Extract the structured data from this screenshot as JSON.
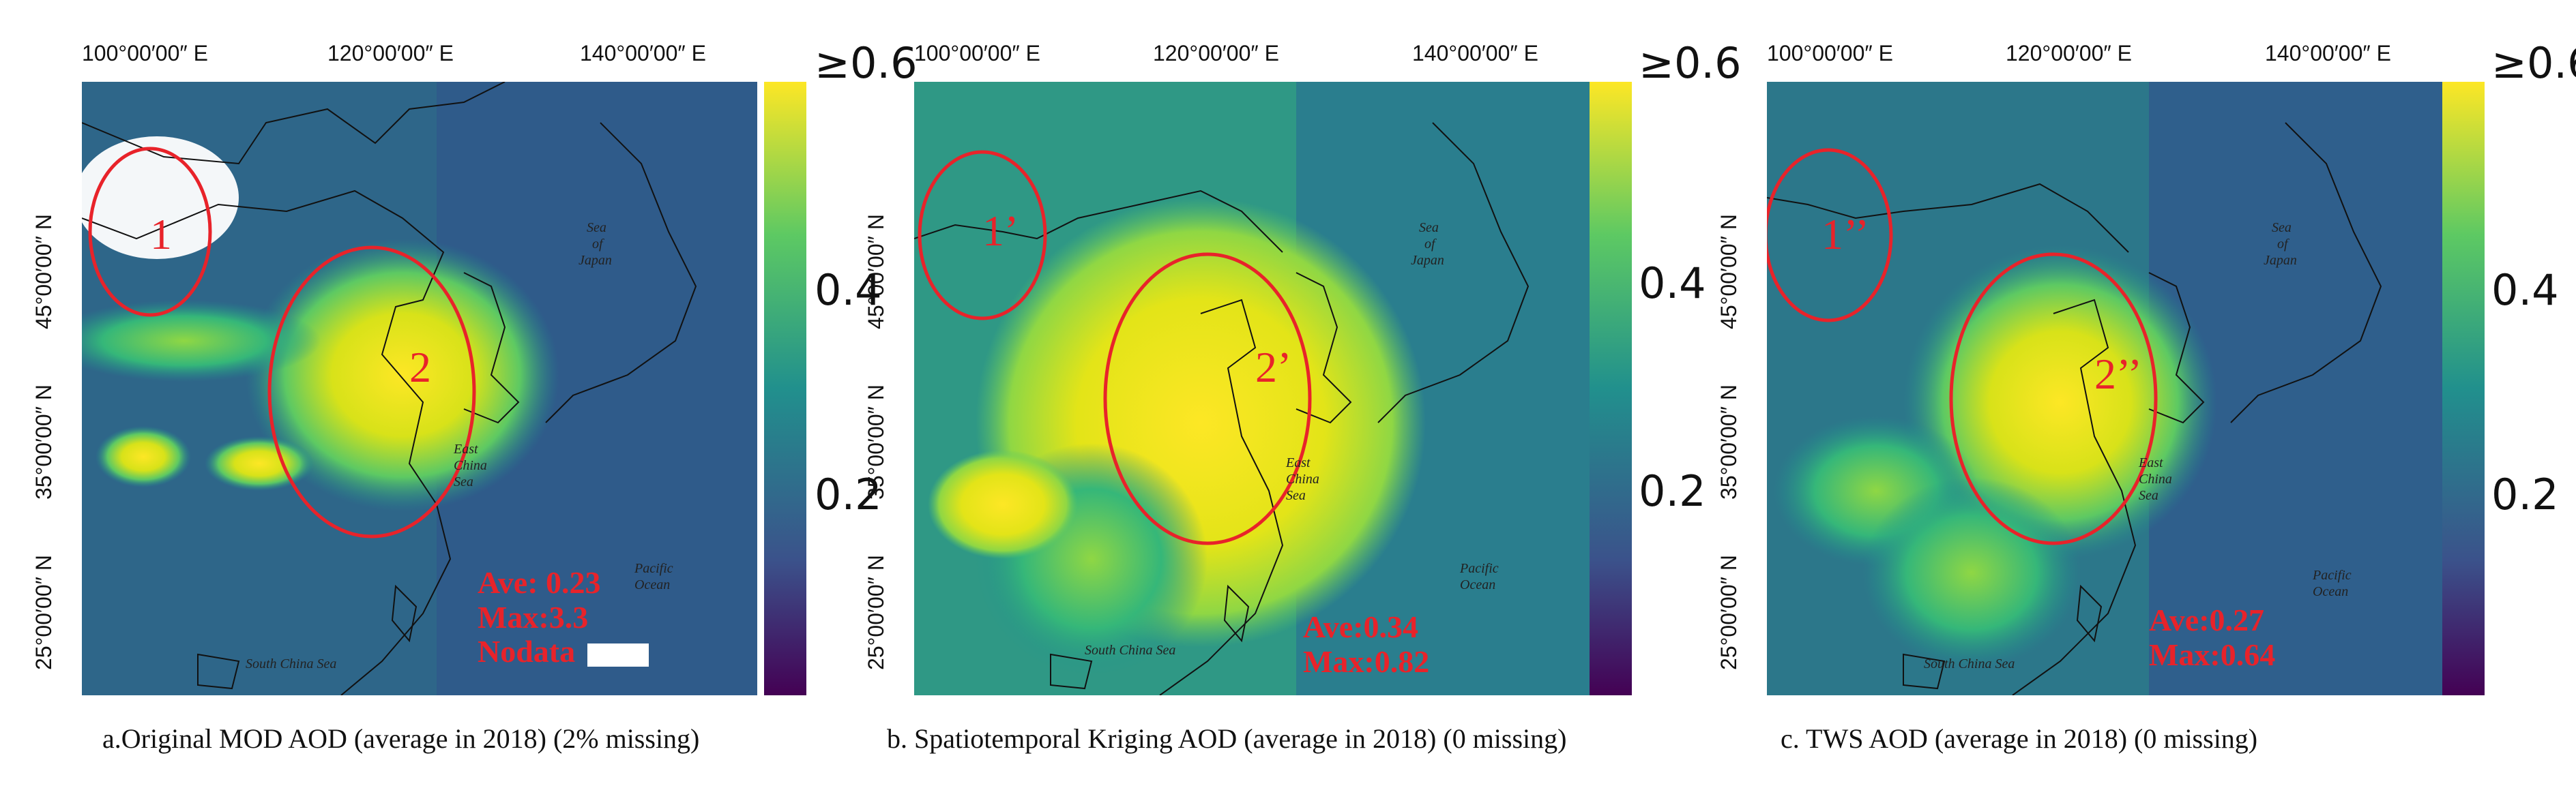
{
  "lon_ticks": [
    "100°00′00″ E",
    "120°00′00″ E",
    "140°00′00″ E"
  ],
  "lat_ticks": [
    "45°00′00″ N",
    "35°00′00″ N",
    "25°00′00″ N"
  ],
  "colorbar_ticks": [
    "≥0.6",
    "0.4",
    "0.2"
  ],
  "colormap": [
    "#440154",
    "#3b528b",
    "#21908d",
    "#5dc963",
    "#fde725"
  ],
  "sea_labels": {
    "sea_of_japan": [
      "Sea",
      "of",
      "Japan"
    ],
    "east_china_sea": [
      "East",
      "China",
      "Sea"
    ],
    "south_china_sea": "South China Sea",
    "pacific": [
      "Pacific",
      "Ocean"
    ]
  },
  "panels": [
    {
      "caption": "a.Original MOD AOD (average in 2018) (2% missing)",
      "region1": "1",
      "region2": "2",
      "stats": [
        "Ave: 0.23",
        "Max:3.3",
        "Nodata"
      ]
    },
    {
      "caption": "b. Spatiotemporal Kriging AOD (average in 2018) (0 missing)",
      "region1": "1’",
      "region2": "2’",
      "stats": [
        "Ave:0.34",
        "Max:0.82"
      ]
    },
    {
      "caption": "c. TWS AOD (average in 2018) (0 missing)",
      "region1": "1’’",
      "region2": "2’’",
      "stats": [
        "Ave:0.27",
        "Max:0.64"
      ]
    }
  ]
}
